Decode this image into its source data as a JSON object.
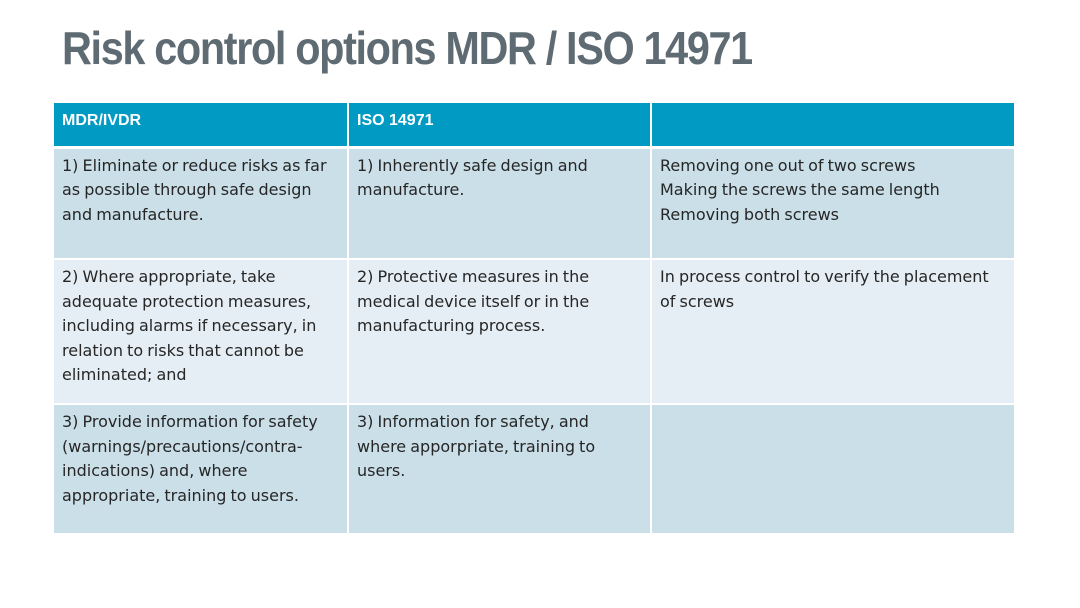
{
  "slide": {
    "title": "Risk control options MDR / ISO 14971"
  },
  "table": {
    "headers": [
      "MDR/IVDR",
      "ISO 14971",
      ""
    ],
    "rows": [
      {
        "mdr": "1) Eliminate or reduce risks as far as possible through safe design and manufacture.",
        "iso": "1) Inherently safe design and manufacture.",
        "example_lines": [
          "Removing one out of two screws",
          "Making the screws the same length",
          "Removing both screws"
        ]
      },
      {
        "mdr": "2) Where appropriate, take adequate protection measures, including alarms if necessary, in relation to risks that cannot be eliminated; and",
        "iso": "2) Protective measures in the medical device itself or in the manufacturing process.",
        "example_lines": [
          "In process control to verify the placement of screws"
        ]
      },
      {
        "mdr": "3) Provide information for safety (warnings/precautions/contra-indications) and, where appropriate, training to users.",
        "iso": "3) Information for safety, and where apporpriate, training to users.",
        "example_lines": []
      }
    ]
  },
  "colors": {
    "title": "#5f6b73",
    "header_bg": "#019ac3",
    "row_dark": "#cadfe8",
    "row_light": "#e5eef4",
    "body_text": "#262626"
  }
}
